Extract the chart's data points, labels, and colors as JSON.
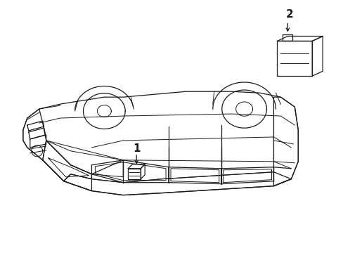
{
  "bg_color": "#ffffff",
  "line_color": "#1a1a1a",
  "fig_width": 4.89,
  "fig_height": 3.6,
  "dpi": 100,
  "label1": "1",
  "label2": "2"
}
